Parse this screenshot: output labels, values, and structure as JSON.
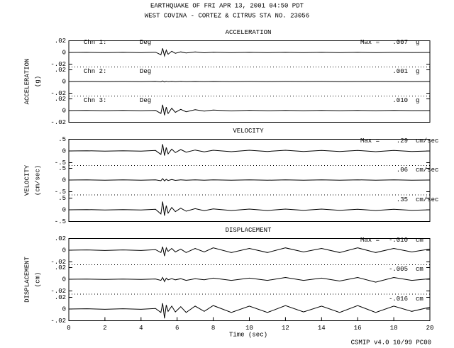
{
  "header": {
    "title": "EARTHQUAKE OF FRI APR 13, 2001  04:50 PDT",
    "subtitle": "WEST COVINA - CORTEZ & CITRUS    STA NO. 23056"
  },
  "footer": "CSMIP v4.0 10/99  PC00",
  "xlabel": "Time (sec)",
  "xlim": [
    0,
    20
  ],
  "xticks": [
    0,
    2,
    4,
    6,
    8,
    10,
    12,
    14,
    16,
    18,
    20
  ],
  "chart_data": [
    {
      "type": "line",
      "title": "ACCELERATION",
      "ylabel": "ACCELERATION",
      "unit_label": "(g)",
      "unit": "g",
      "max_prefix": "Max =",
      "x": [
        0,
        1,
        2,
        3,
        4,
        4.8,
        5.1,
        5.2,
        5.3,
        5.4,
        5.5,
        5.7,
        5.9,
        6.2,
        6.5,
        7,
        7.5,
        8,
        9,
        10,
        11,
        12,
        13,
        14,
        15,
        16,
        17,
        18,
        19,
        20
      ],
      "ylim": [
        -0.02,
        0.02
      ],
      "yticks": [
        {
          "value": 0.02,
          "label": ".02"
        },
        0,
        {
          "value": -0.02,
          "label": "-.02"
        }
      ],
      "series": [
        {
          "name": "Chn 1:",
          "direction": "Deg",
          "color": "#000000",
          "max": 0.007,
          "max_label": ".007",
          "values": [
            0,
            0.0003,
            -0.0003,
            0.0002,
            -0.0002,
            0.0005,
            -0.004,
            0.007,
            -0.006,
            0.004,
            -0.003,
            0.002,
            -0.0015,
            0.001,
            -0.001,
            0.0008,
            -0.0006,
            0.0005,
            -0.0004,
            0.0004,
            -0.0003,
            0.0003,
            -0.0003,
            0.0002,
            -0.0002,
            0.0002,
            -0.0002,
            0.0001,
            -0.0001,
            0
          ]
        },
        {
          "name": "Chn 2:",
          "direction": "Deg",
          "color": "#000000",
          "max": 0.001,
          "max_label": ".001",
          "values": [
            0,
            0.0001,
            -0.0001,
            0.0001,
            -0.0001,
            0.0002,
            -0.0006,
            0.001,
            -0.0008,
            0.0006,
            -0.0004,
            0.0003,
            -0.0002,
            0.0002,
            -0.0001,
            0.0001,
            -0.0001,
            0.0001,
            -0.0001,
            0.0001,
            -0.0001,
            0.0001,
            0,
            0.0001,
            -0.0001,
            0,
            0.0001,
            0,
            -0.0001,
            0
          ]
        },
        {
          "name": "Chn 3:",
          "direction": "Deg",
          "color": "#000000",
          "max": 0.01,
          "max_label": ".010",
          "values": [
            0,
            0.0002,
            -0.0002,
            0.0002,
            -0.0002,
            0.0004,
            -0.005,
            0.01,
            -0.008,
            0.006,
            -0.005,
            0.004,
            -0.003,
            0.002,
            -0.002,
            0.0015,
            -0.001,
            0.0008,
            -0.0006,
            0.0005,
            -0.0004,
            0.0003,
            -0.0003,
            0.0003,
            -0.0002,
            0.0002,
            -0.0002,
            0.0002,
            -0.0001,
            0
          ]
        }
      ]
    },
    {
      "type": "line",
      "title": "VELOCITY",
      "ylabel": "VELOCITY",
      "unit_label": "(cm/sec)",
      "unit": "cm/sec",
      "max_prefix": "Max =",
      "x": [
        0,
        1,
        2,
        3,
        4,
        4.8,
        5.1,
        5.2,
        5.3,
        5.4,
        5.5,
        5.7,
        5.9,
        6.2,
        6.5,
        7,
        7.5,
        8,
        9,
        10,
        11,
        12,
        13,
        14,
        15,
        16,
        17,
        18,
        19,
        20
      ],
      "ylim": [
        -0.5,
        0.5
      ],
      "yticks": [
        {
          "value": 0.5,
          "label": ".5"
        },
        0,
        {
          "value": -0.5,
          "label": "-.5"
        }
      ],
      "series": [
        {
          "color": "#000000",
          "max": 0.29,
          "max_label": ".29",
          "values": [
            0,
            0.01,
            -0.01,
            0.01,
            -0.01,
            0.02,
            -0.15,
            0.29,
            -0.2,
            0.15,
            -0.12,
            0.08,
            -0.07,
            0.06,
            -0.05,
            0.04,
            -0.04,
            0.03,
            -0.03,
            0.03,
            -0.02,
            0.03,
            -0.02,
            0.02,
            -0.02,
            0.02,
            -0.03,
            0.02,
            -0.02,
            0
          ]
        },
        {
          "color": "#000000",
          "max": 0.06,
          "max_label": ".06",
          "values": [
            0,
            0.005,
            -0.005,
            0.005,
            -0.005,
            0.01,
            -0.03,
            0.06,
            -0.04,
            0.03,
            -0.02,
            0.02,
            -0.015,
            0.01,
            -0.01,
            0.01,
            -0.01,
            0.01,
            -0.01,
            0.01,
            -0.01,
            0.01,
            -0.01,
            0.01,
            -0.01,
            0.01,
            -0.01,
            0.01,
            -0.005,
            0
          ]
        },
        {
          "color": "#000000",
          "max": 0.35,
          "max_label": ".35",
          "values": [
            0,
            0.01,
            -0.01,
            0.01,
            -0.01,
            0.02,
            -0.18,
            0.35,
            -0.25,
            0.18,
            -0.14,
            0.1,
            -0.08,
            0.07,
            -0.06,
            0.05,
            -0.04,
            0.04,
            -0.03,
            0.03,
            -0.03,
            0.03,
            -0.02,
            0.03,
            -0.02,
            0.02,
            -0.03,
            0.02,
            -0.02,
            0
          ]
        }
      ]
    },
    {
      "type": "line",
      "title": "DISPLACEMENT",
      "ylabel": "DISPLACEMENT",
      "unit_label": "(cm)",
      "unit": "cm",
      "max_prefix": "Max =",
      "x": [
        0,
        1,
        2,
        3,
        4,
        4.8,
        5.1,
        5.2,
        5.3,
        5.4,
        5.5,
        5.7,
        5.9,
        6.2,
        6.5,
        7,
        7.5,
        8,
        9,
        10,
        11,
        12,
        13,
        14,
        15,
        16,
        17,
        18,
        19,
        20
      ],
      "ylim": [
        -0.02,
        0.02
      ],
      "yticks": [
        {
          "value": 0.02,
          "label": ".02"
        },
        0,
        {
          "value": -0.02,
          "label": "-.02"
        }
      ],
      "series": [
        {
          "color": "#000000",
          "max": -0.01,
          "max_label": "-.010",
          "values": [
            0,
            0.0005,
            -0.0005,
            0.0005,
            -0.0005,
            0.001,
            -0.004,
            0.006,
            -0.01,
            0.004,
            -0.002,
            0.003,
            -0.003,
            0.002,
            -0.004,
            0.003,
            -0.003,
            0.004,
            -0.004,
            0.003,
            -0.004,
            0.004,
            -0.003,
            0.003,
            -0.004,
            0.004,
            -0.004,
            0.003,
            -0.003,
            0.002
          ]
        },
        {
          "color": "#000000",
          "max": -0.005,
          "max_label": "-.005",
          "values": [
            0,
            0.0003,
            -0.0003,
            0.0003,
            -0.0003,
            0.0005,
            -0.002,
            0.003,
            -0.004,
            0.002,
            -0.001,
            0.001,
            -0.001,
            0.001,
            -0.002,
            0.001,
            -0.001,
            0.002,
            -0.002,
            0.002,
            -0.002,
            0.003,
            -0.002,
            0.002,
            -0.003,
            0.003,
            -0.005,
            0.003,
            -0.002,
            0.001
          ]
        },
        {
          "color": "#000000",
          "max": -0.016,
          "max_label": "-.016",
          "values": [
            0,
            0.0005,
            -0.0005,
            0.0005,
            -0.0005,
            0.001,
            -0.006,
            0.01,
            -0.016,
            0.007,
            -0.004,
            0.005,
            -0.005,
            0.004,
            -0.006,
            0.005,
            -0.004,
            0.006,
            -0.006,
            0.005,
            -0.006,
            0.006,
            -0.005,
            0.005,
            -0.006,
            0.006,
            -0.006,
            0.005,
            -0.004,
            0.003
          ]
        }
      ]
    }
  ]
}
